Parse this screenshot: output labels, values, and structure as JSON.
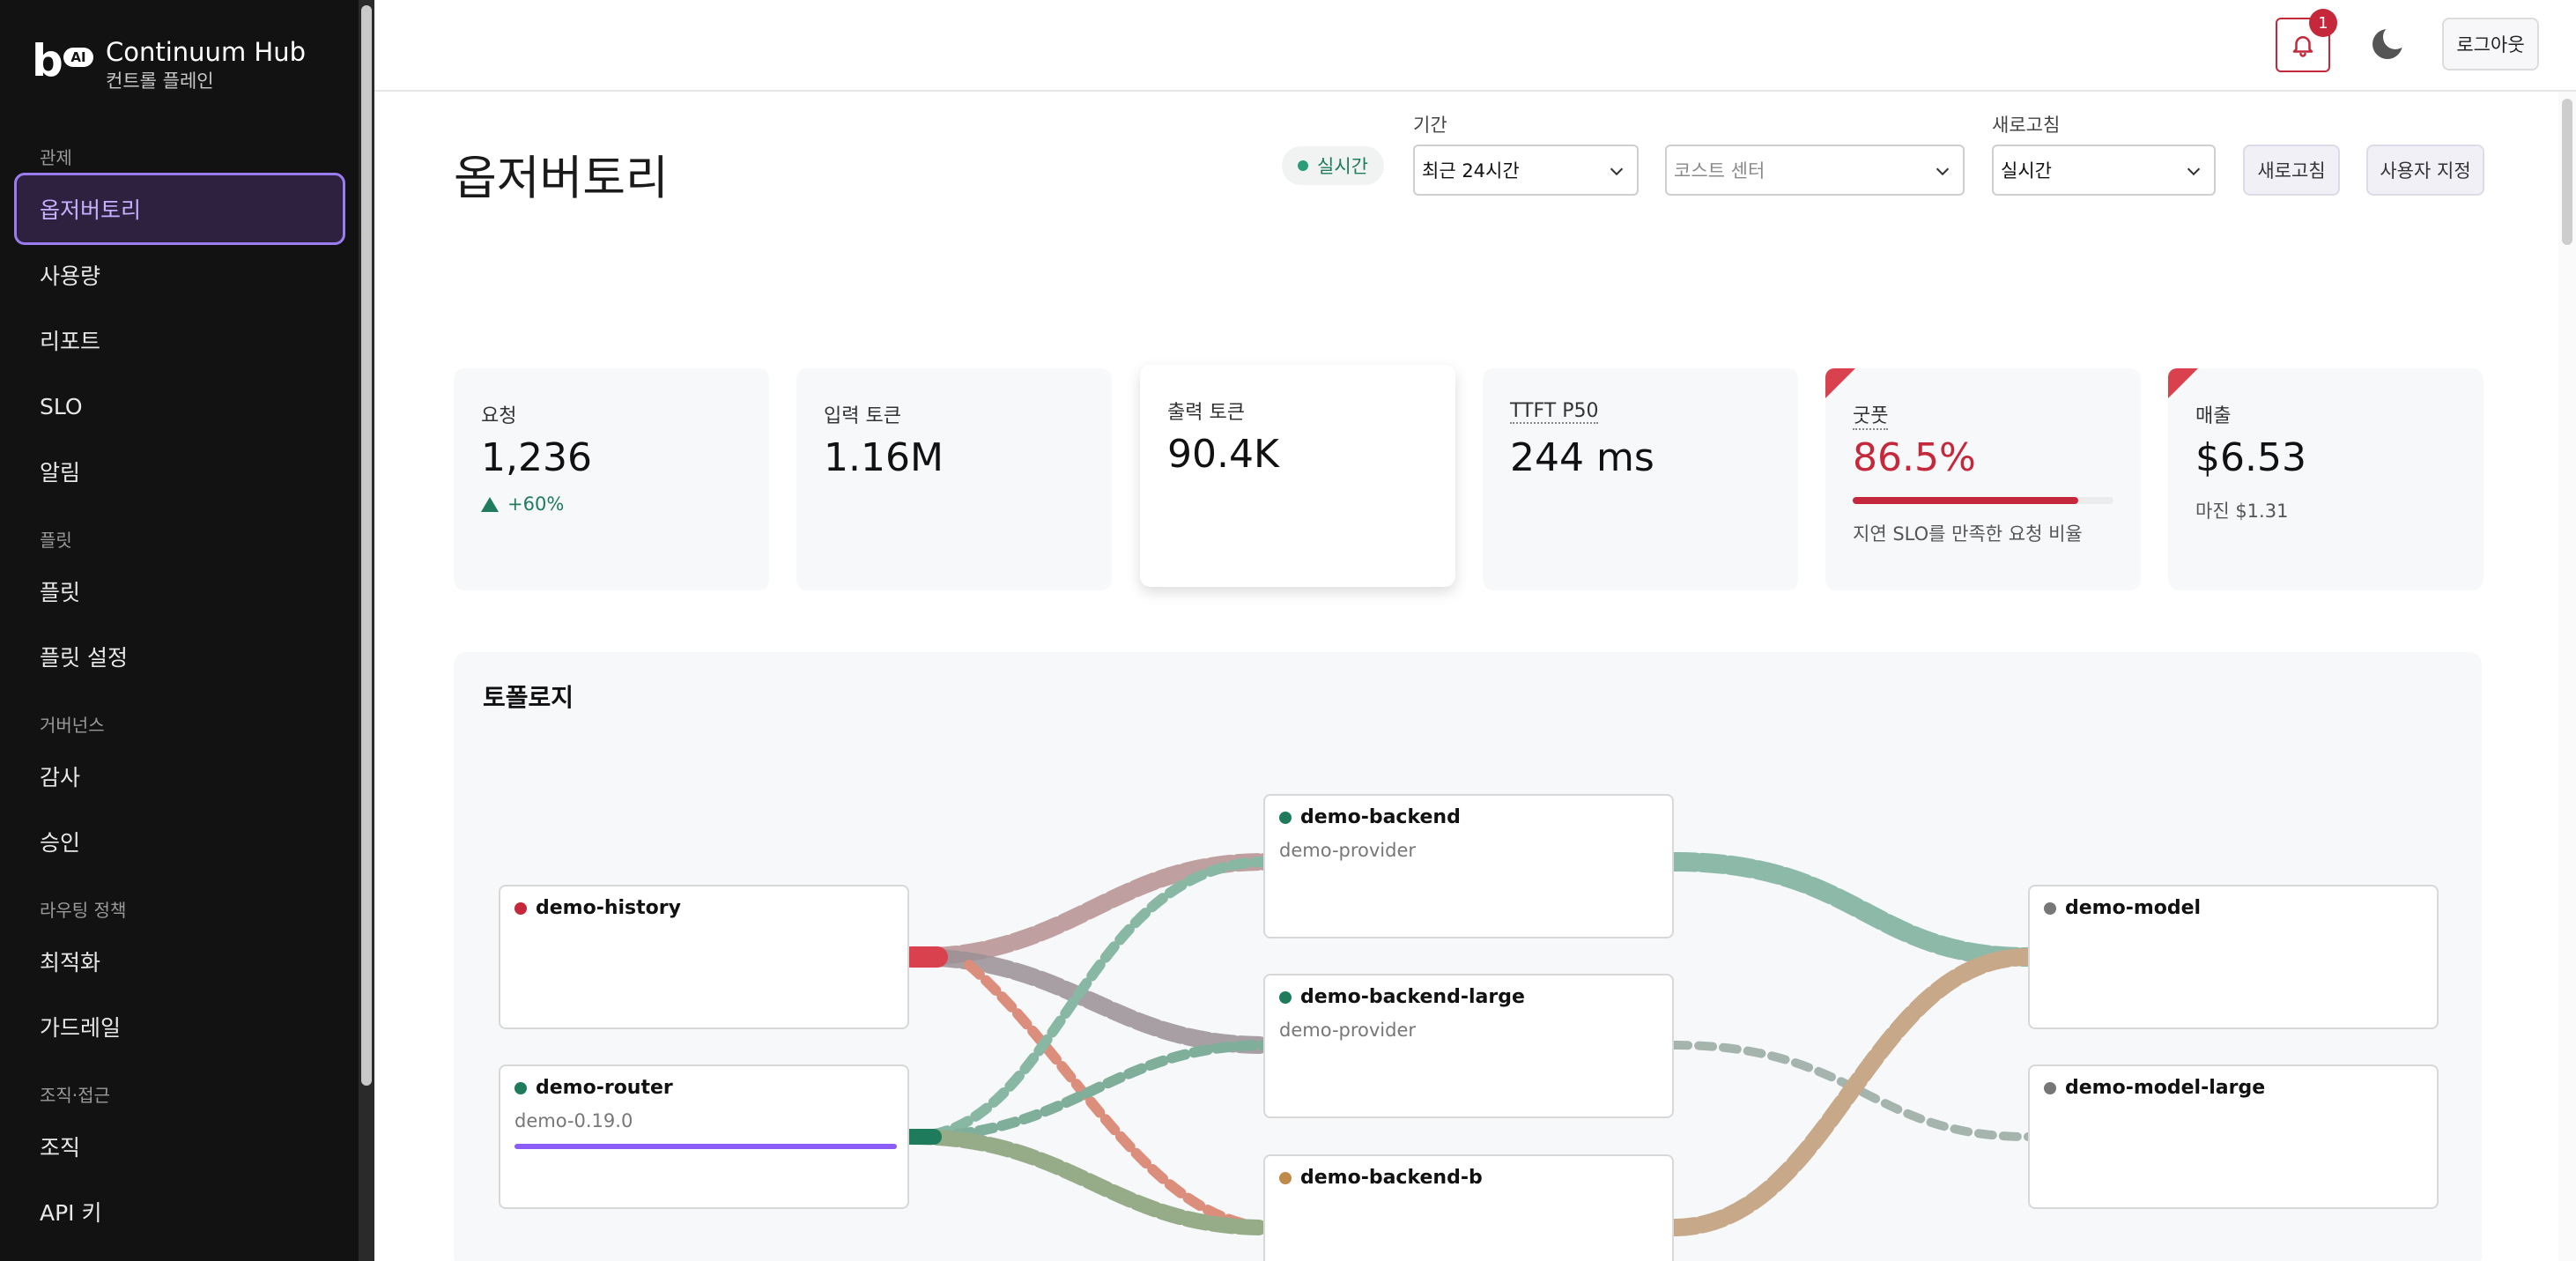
{
  "app": {
    "logo_letter": "b",
    "logo_badge": "AI",
    "name": "Continuum Hub",
    "subtitle": "컨트롤 플레인"
  },
  "sidebar": {
    "sections": [
      {
        "label": "관제",
        "items": [
          {
            "label": "옵저버토리",
            "active": true
          },
          {
            "label": "사용량"
          },
          {
            "label": "리포트"
          },
          {
            "label": "SLO"
          },
          {
            "label": "알림"
          }
        ]
      },
      {
        "label": "플릿",
        "items": [
          {
            "label": "플릿"
          },
          {
            "label": "플릿 설정"
          }
        ]
      },
      {
        "label": "거버넌스",
        "items": [
          {
            "label": "감사"
          },
          {
            "label": "승인"
          }
        ]
      },
      {
        "label": "라우팅 정책",
        "items": [
          {
            "label": "최적화"
          },
          {
            "label": "가드레일"
          }
        ]
      },
      {
        "label": "조직·접근",
        "items": [
          {
            "label": "조직"
          },
          {
            "label": "API 키"
          }
        ]
      }
    ]
  },
  "topbar": {
    "notification_count": "1",
    "logout_label": "로그아웃",
    "bell_icon": "bell-icon",
    "theme_icon": "moon-icon"
  },
  "header": {
    "title": "옵저버토리",
    "live_label": "실시간",
    "period_label": "기간",
    "period_value": "최근 24시간",
    "cost_center_placeholder": "코스트 센터",
    "refresh_label": "새로고침",
    "refresh_value": "실시간",
    "refresh_button": "새로고침",
    "custom_button": "사용자 지정"
  },
  "kpis": [
    {
      "label": "요청",
      "value": "1,236",
      "delta": "+60%"
    },
    {
      "label": "입력 토큰",
      "value": "1.16M"
    },
    {
      "label": "출력 토큰",
      "value": "90.4K"
    },
    {
      "label": "TTFT P50",
      "value": "244 ms"
    },
    {
      "label": "굿풋",
      "value": "86.5%",
      "progress": 0.865,
      "sub": "지연 SLO를 만족한 요청 비율"
    },
    {
      "label": "매출",
      "value": "$6.53",
      "sub": "마진 $1.31"
    }
  ],
  "topology": {
    "title": "토폴로지",
    "nodes": [
      {
        "name": "demo-history",
        "sub": "",
        "status_color": "#c4283a"
      },
      {
        "name": "demo-router",
        "sub": "demo-0.19.0",
        "status_color": "#1e7b5c"
      },
      {
        "name": "demo-backend",
        "sub": "demo-provider",
        "status_color": "#1e7b5c"
      },
      {
        "name": "demo-backend-large",
        "sub": "demo-provider",
        "status_color": "#1e7b5c"
      },
      {
        "name": "demo-backend-b",
        "sub": "",
        "status_color": "#c08a4a"
      },
      {
        "name": "demo-model",
        "sub": "",
        "status_color": "#777777"
      },
      {
        "name": "demo-model-large",
        "sub": "",
        "status_color": "#777777"
      }
    ]
  },
  "colors": {
    "accent": "#9b7cf0",
    "danger": "#c4283a",
    "success": "#1e7b5c"
  }
}
